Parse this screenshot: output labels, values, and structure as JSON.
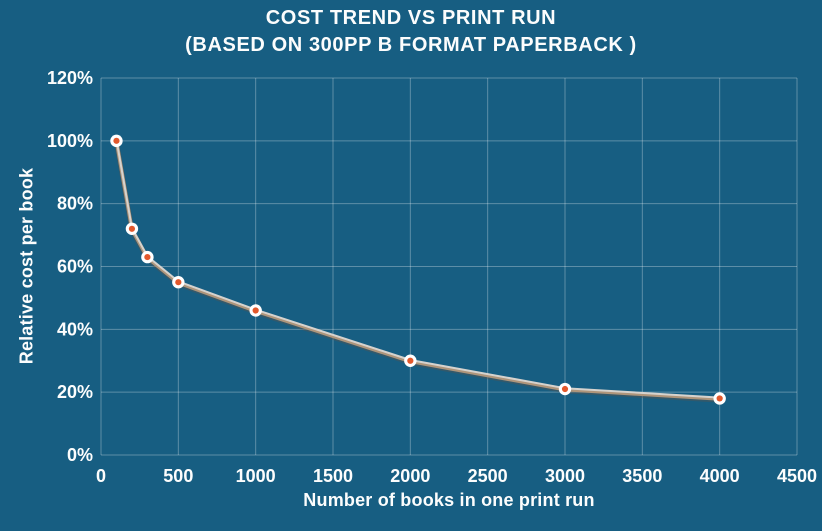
{
  "page": {
    "background": "#175E82"
  },
  "chart_data": {
    "type": "line",
    "title": "COST TREND VS PRINT RUN",
    "subtitle": "(BASED ON 300PP B FORMAT PAPERBACK )",
    "xlabel": "Number of books in one print run",
    "ylabel": "Relative cost per book",
    "xlim": [
      0,
      4500
    ],
    "ylim": [
      0,
      120
    ],
    "grid": true,
    "legend": false,
    "x_ticks": {
      "values": [
        0,
        500,
        1000,
        1500,
        2000,
        2500,
        3000,
        3500,
        4000,
        4500
      ],
      "labels": [
        "0",
        "500",
        "1000",
        "1500",
        "2000",
        "2500",
        "3000",
        "3500",
        "4000",
        "4500"
      ]
    },
    "y_ticks": {
      "values": [
        0,
        20,
        40,
        60,
        80,
        100,
        120
      ],
      "labels": [
        "0%",
        "20%",
        "40%",
        "60%",
        "80%",
        "100%",
        "120%"
      ]
    },
    "series": [
      {
        "name": "Relative cost per book",
        "x": [
          100,
          200,
          300,
          500,
          1000,
          2000,
          3000,
          4000
        ],
        "y": [
          100,
          72,
          63,
          55,
          46,
          30,
          21,
          18
        ]
      }
    ],
    "colors": {
      "background": "#175E82",
      "grid": "#FFFFFF",
      "grid_opacity": "0.30",
      "text": "#FCFDFD",
      "line_shadow": "#5E5348",
      "line_base": "#AE957B",
      "line_highlight": "#D6D3CE",
      "marker_fill": "#E2582C",
      "marker_ring": "#FFFFFF"
    }
  }
}
